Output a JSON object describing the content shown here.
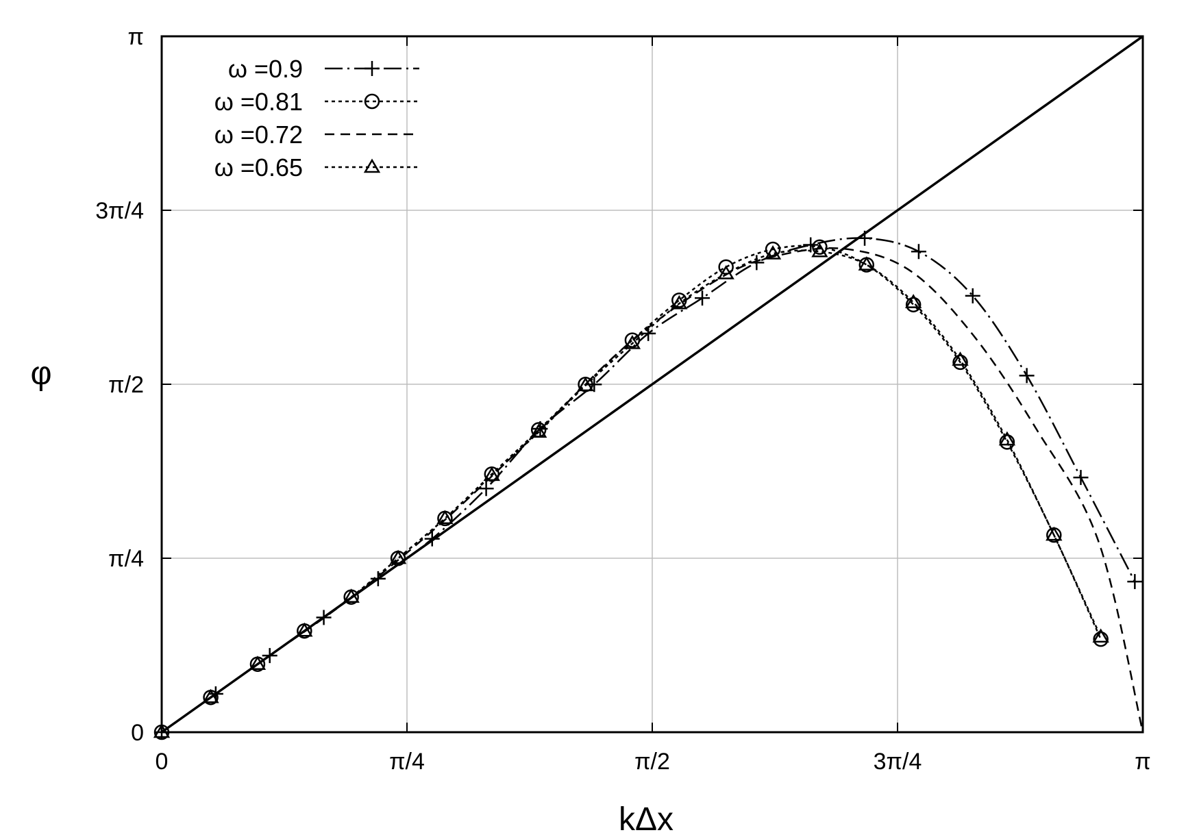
{
  "chart_data": {
    "type": "line",
    "title": "",
    "xlabel": "kΔx",
    "ylabel": "φ",
    "xlim": [
      0,
      3.14159
    ],
    "ylim": [
      0,
      3.14159
    ],
    "grid": true,
    "legend_position": "top-left",
    "x_ticks": [
      {
        "value": 0,
        "label": "0"
      },
      {
        "value": 0.7854,
        "label": "π/4"
      },
      {
        "value": 1.5708,
        "label": "π/2"
      },
      {
        "value": 2.3562,
        "label": "3π/4"
      },
      {
        "value": 3.14159,
        "label": "π"
      }
    ],
    "y_ticks": [
      {
        "value": 0,
        "label": "0"
      },
      {
        "value": 0.7854,
        "label": "π/4"
      },
      {
        "value": 1.5708,
        "label": "π/2"
      },
      {
        "value": 2.3562,
        "label": "3π/4"
      },
      {
        "value": 3.14159,
        "label": "π"
      }
    ],
    "reference_line": {
      "x": [
        0,
        3.14159
      ],
      "y": [
        0,
        3.14159
      ]
    },
    "series": [
      {
        "name": "ω =0.9",
        "style": "long-dash",
        "marker": "plus",
        "x": [
          0,
          0.173,
          0.346,
          0.519,
          0.693,
          0.866,
          1.039,
          1.212,
          1.385,
          1.558,
          1.731,
          1.905,
          2.078,
          2.251,
          2.424,
          2.597,
          2.77,
          2.943,
          3.116
        ],
        "y": [
          0,
          0.173,
          0.346,
          0.518,
          0.693,
          0.873,
          1.1,
          1.37,
          1.57,
          1.8,
          1.96,
          2.12,
          2.2,
          2.23,
          2.17,
          1.97,
          1.61,
          1.15,
          0.68
        ]
      },
      {
        "name": "ω =0.81",
        "style": "dotted",
        "marker": "circle",
        "x": [
          0,
          0.157,
          0.307,
          0.457,
          0.607,
          0.757,
          0.907,
          1.057,
          1.207,
          1.357,
          1.507,
          1.657,
          1.807,
          1.957,
          2.107,
          2.257,
          2.407,
          2.557,
          2.707,
          2.857,
          3.007
        ],
        "y": [
          0,
          0.157,
          0.307,
          0.457,
          0.61,
          0.785,
          0.965,
          1.165,
          1.365,
          1.57,
          1.77,
          1.95,
          2.1,
          2.18,
          2.19,
          2.11,
          1.93,
          1.67,
          1.31,
          0.89,
          0.42
        ]
      },
      {
        "name": "ω =0.72",
        "style": "short-dash",
        "marker": "none",
        "x": [
          0,
          0.3,
          0.6,
          0.9,
          1.2,
          1.5,
          1.8,
          2.0,
          2.2,
          2.4,
          2.6,
          2.8,
          3.0,
          3.14159
        ],
        "y": [
          0,
          0.3,
          0.6,
          0.95,
          1.35,
          1.76,
          2.06,
          2.16,
          2.18,
          2.08,
          1.79,
          1.37,
          0.86,
          0
        ]
      },
      {
        "name": "ω =0.65",
        "style": "dotted",
        "marker": "triangle",
        "x": [
          0,
          0.157,
          0.307,
          0.457,
          0.607,
          0.757,
          0.907,
          1.057,
          1.207,
          1.357,
          1.507,
          1.657,
          1.807,
          1.957,
          2.107,
          2.257,
          2.407,
          2.557,
          2.707,
          2.857,
          3.007
        ],
        "y": [
          0,
          0.157,
          0.307,
          0.457,
          0.61,
          0.785,
          0.965,
          1.16,
          1.355,
          1.565,
          1.755,
          1.935,
          2.07,
          2.16,
          2.17,
          2.11,
          1.94,
          1.68,
          1.32,
          0.89,
          0.43
        ]
      }
    ]
  }
}
